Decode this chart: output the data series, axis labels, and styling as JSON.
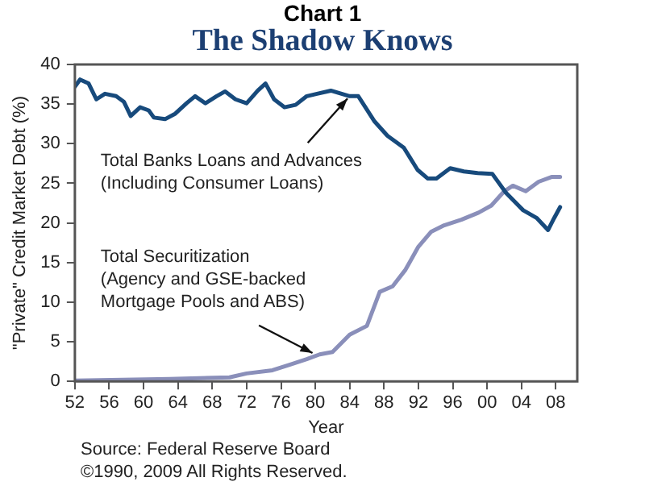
{
  "chart_data": {
    "type": "line",
    "title": "Chart 1",
    "subtitle": "The Shadow Knows",
    "xlabel": "Year",
    "ylabel": "\"Private\" Credit Market Debt (%)",
    "xlim": [
      1952,
      2010.5
    ],
    "ylim": [
      0,
      40
    ],
    "xticks": [
      {
        "value": 1952,
        "label": "52"
      },
      {
        "value": 1956,
        "label": "56"
      },
      {
        "value": 1960,
        "label": "60"
      },
      {
        "value": 1964,
        "label": "64"
      },
      {
        "value": 1968,
        "label": "68"
      },
      {
        "value": 1972,
        "label": "72"
      },
      {
        "value": 1976,
        "label": "76"
      },
      {
        "value": 1980,
        "label": "80"
      },
      {
        "value": 1984,
        "label": "84"
      },
      {
        "value": 1988,
        "label": "88"
      },
      {
        "value": 1992,
        "label": "92"
      },
      {
        "value": 1996,
        "label": "96"
      },
      {
        "value": 2000,
        "label": "00"
      },
      {
        "value": 2004,
        "label": "04"
      },
      {
        "value": 2008,
        "label": "08"
      }
    ],
    "yticks": [
      0,
      5,
      10,
      15,
      20,
      25,
      30,
      35,
      40
    ],
    "grid": false,
    "legend": false,
    "marker": "none",
    "line_style": "solid",
    "series": [
      {
        "color": "#174a7c",
        "x": [
          1952,
          1952.6,
          1953.6,
          1954.5,
          1955.5,
          1956.8,
          1957.7,
          1958.5,
          1959.6,
          1960.6,
          1961.2,
          1962.5,
          1963.7,
          1965,
          1966,
          1967.2,
          1968.5,
          1969.5,
          1970.7,
          1972,
          1973.3,
          1974.2,
          1975.2,
          1976.4,
          1977.7,
          1979,
          1980.2,
          1981.8,
          1984,
          1985,
          1986.9,
          1988.4,
          1990.3,
          1991.9,
          1993.1,
          1994.1,
          1995.7,
          1997.3,
          1998.9,
          2000.6,
          2002.2,
          2004.2,
          2005.8,
          2007.1,
          2007.8,
          2008.5
        ],
        "values": [
          37.2,
          38.1,
          37.6,
          35.6,
          36.3,
          36,
          35.3,
          33.5,
          34.6,
          34.2,
          33.3,
          33.1,
          33.8,
          35.1,
          36,
          35.1,
          36,
          36.6,
          35.6,
          35.1,
          36.7,
          37.6,
          35.6,
          34.6,
          34.9,
          36,
          36.3,
          36.7,
          36,
          36,
          32.8,
          31,
          29.5,
          26.7,
          25.6,
          25.6,
          26.9,
          26.5,
          26.3,
          26.2,
          23.8,
          21.6,
          20.6,
          19.1,
          20.6,
          22
        ]
      },
      {
        "color": "#8a8fba",
        "x": [
          1952,
          1963,
          1970,
          1972,
          1975,
          1977,
          1979,
          1980.5,
          1982,
          1984,
          1986,
          1987.5,
          1989,
          1990.5,
          1992,
          1993.5,
          1995,
          1997,
          1999,
          2000.5,
          2002,
          2003,
          2004.5,
          2006,
          2007.5,
          2008.5
        ],
        "values": [
          0.1,
          0.3,
          0.5,
          1,
          1.4,
          2.1,
          2.8,
          3.4,
          3.7,
          5.9,
          7,
          11.3,
          12,
          14.1,
          17,
          18.9,
          19.7,
          20.4,
          21.3,
          22.2,
          24,
          24.7,
          24,
          25.2,
          25.8,
          25.8
        ]
      }
    ],
    "annotations": [
      {
        "text": "Total Banks Loans and Advances\n(Including Consumer Loans)",
        "x": 1984,
        "y": 36
      },
      {
        "text": "Total Securitization\n(Agency and GSE-backed\nMortgage Pools and ABS)",
        "x": 1980,
        "y": 3.4
      },
      "Source: Federal Reserve Board",
      "©1990, 2009 All Rights Reserved."
    ]
  }
}
